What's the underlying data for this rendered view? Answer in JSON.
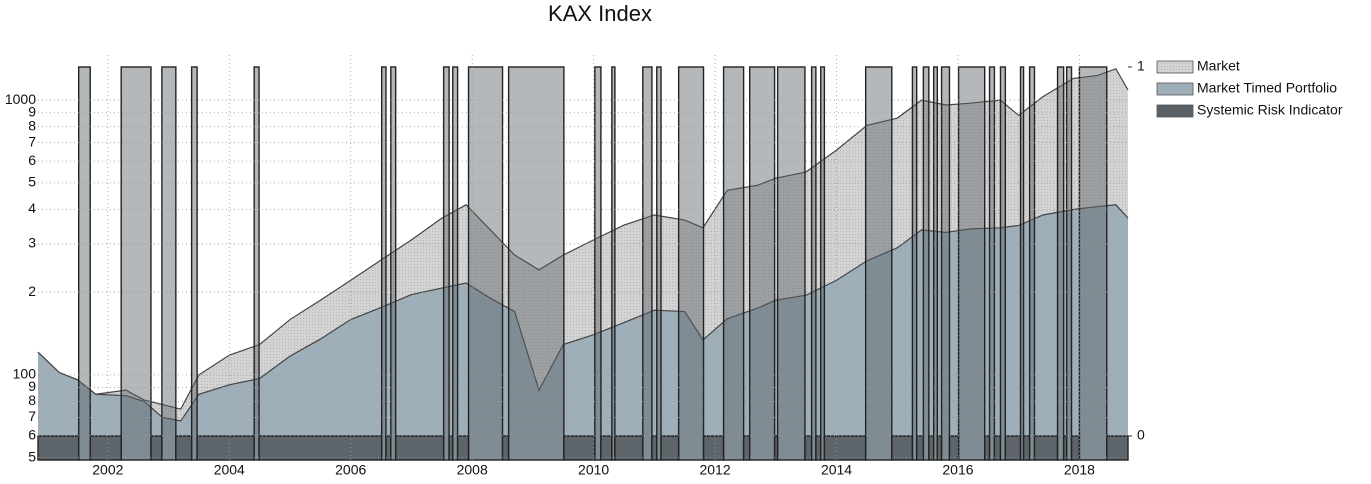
{
  "chart_data": {
    "type": "area",
    "title": "KAX Index",
    "log_y": true,
    "grid": true,
    "legend": "right",
    "xlim": [
      2000.85,
      2018.8
    ],
    "xticks": [
      2002,
      2004,
      2006,
      2008,
      2010,
      2012,
      2014,
      2016,
      2018
    ],
    "ylim": [
      49,
      1460
    ],
    "yticks": [
      {
        "value": 50,
        "label": "5"
      },
      {
        "value": 60,
        "label": "6"
      },
      {
        "value": 70,
        "label": "7"
      },
      {
        "value": 80,
        "label": "8"
      },
      {
        "value": 90,
        "label": "9"
      },
      100,
      {
        "value": 200,
        "label": "2"
      },
      {
        "value": 300,
        "label": "3"
      },
      {
        "value": 400,
        "label": "4"
      },
      {
        "value": 500,
        "label": "5"
      },
      {
        "value": 600,
        "label": "6"
      },
      {
        "value": 700,
        "label": "7"
      },
      {
        "value": 800,
        "label": "8"
      },
      {
        "value": 900,
        "label": "9"
      },
      1000
    ],
    "y2lim": [
      -0.065,
      1.0325
    ],
    "y2ticks": [
      0,
      1
    ],
    "x": [
      2000.85,
      2001.2,
      2001.5,
      2001.8,
      2002.3,
      2002.6,
      2002.9,
      2003.2,
      2003.5,
      2004.0,
      2004.5,
      2005.0,
      2005.5,
      2006.0,
      2006.5,
      2007.0,
      2007.5,
      2007.9,
      2008.3,
      2008.7,
      2009.1,
      2009.5,
      2010.0,
      2010.5,
      2011.0,
      2011.5,
      2011.8,
      2012.2,
      2012.7,
      2013.0,
      2013.5,
      2014.0,
      2014.5,
      2015.0,
      2015.4,
      2015.8,
      2016.2,
      2016.7,
      2017.0,
      2017.4,
      2017.9,
      2018.3,
      2018.6,
      2018.8
    ],
    "series": [
      {
        "name": "Market",
        "color": "#d3d3d3",
        "values": [
          121,
          102,
          96,
          85,
          88,
          81,
          78,
          75,
          100,
          118,
          129,
          159,
          187,
          221,
          262,
          310,
          372,
          416,
          337,
          273,
          241,
          273,
          310,
          351,
          382,
          366,
          343,
          470,
          490,
          520,
          548,
          658,
          809,
          860,
          1000,
          960,
          975,
          1000,
          880,
          1030,
          1200,
          1230,
          1300,
          1090
        ]
      },
      {
        "name": "Market Timed Portfolio",
        "color": "#9eafba",
        "values": [
          121,
          102,
          96,
          85,
          84,
          80,
          70,
          68,
          85,
          92,
          97,
          117,
          135,
          159,
          176,
          196,
          207,
          216,
          190,
          170,
          88,
          129,
          140,
          155,
          172,
          170,
          134,
          160,
          175,
          187,
          195,
          221,
          260,
          290,
          337,
          330,
          340,
          343,
          350,
          382,
          400,
          410,
          416,
          372
        ]
      },
      {
        "name": "Systemic Risk Indicator",
        "color": "#5a6166",
        "axis": "y2",
        "x": [
          2000.85,
          2001.52,
          2001.71,
          2002.22,
          2002.71,
          2002.89,
          2003.12,
          2003.38,
          2003.47,
          2004.41,
          2004.49,
          2006.51,
          2006.58,
          2006.66,
          2006.74,
          2007.53,
          2007.62,
          2007.68,
          2007.76,
          2007.94,
          2008.5,
          2008.6,
          2009.51,
          2010.02,
          2010.12,
          2010.3,
          2010.35,
          2010.81,
          2010.96,
          2011.04,
          2011.11,
          2011.4,
          2011.81,
          2012.14,
          2012.47,
          2012.57,
          2012.98,
          2013.03,
          2013.48,
          2013.59,
          2013.66,
          2013.74,
          2013.8,
          2014.48,
          2014.91,
          2015.25,
          2015.32,
          2015.43,
          2015.52,
          2015.6,
          2015.66,
          2015.73,
          2015.86,
          2016.01,
          2016.44,
          2016.52,
          2016.6,
          2016.7,
          2016.78,
          2017.03,
          2017.08,
          2017.18,
          2017.26,
          2017.64,
          2017.74,
          2017.79,
          2017.87,
          2018.0,
          2018.45
        ],
        "values": [
          0,
          1,
          0,
          1,
          0,
          1,
          0,
          1,
          0,
          1,
          0,
          1,
          0,
          1,
          0,
          1,
          0,
          1,
          0,
          1,
          0,
          1,
          0,
          1,
          0,
          1,
          0,
          1,
          0,
          1,
          0,
          1,
          0,
          1,
          0,
          1,
          0,
          1,
          0,
          1,
          0,
          1,
          0,
          1,
          0,
          1,
          0,
          1,
          0,
          1,
          0,
          1,
          0,
          1,
          0,
          1,
          0,
          1,
          0,
          1,
          0,
          1,
          0,
          1,
          0,
          1,
          0,
          1,
          0
        ]
      }
    ]
  }
}
